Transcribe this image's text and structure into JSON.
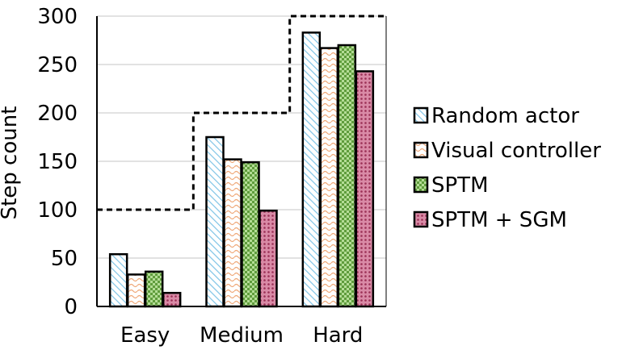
{
  "chart_data": {
    "type": "bar",
    "ylabel": "Step count",
    "ylim": [
      0,
      300
    ],
    "yticks": [
      0,
      50,
      100,
      150,
      200,
      250,
      300
    ],
    "categories": [
      "Easy",
      "Medium",
      "Hard"
    ],
    "series": [
      {
        "name": "Random actor",
        "values": [
          54,
          175,
          283
        ],
        "color": "#b9dff2",
        "pattern": "diagonal-stripes"
      },
      {
        "name": "Visual controller",
        "values": [
          33,
          152,
          267
        ],
        "color": "#f5c6a5",
        "pattern": "wavy"
      },
      {
        "name": "SPTM",
        "values": [
          36,
          149,
          270
        ],
        "color": "#8fc06e",
        "pattern": "checker"
      },
      {
        "name": "SPTM + SGM",
        "values": [
          14,
          99,
          243
        ],
        "color": "#c0567a",
        "pattern": "dots"
      }
    ],
    "limit_line": {
      "style": "dashed",
      "values": [
        100,
        200,
        300
      ]
    },
    "grid": "horizontal",
    "legend_position": "right"
  }
}
